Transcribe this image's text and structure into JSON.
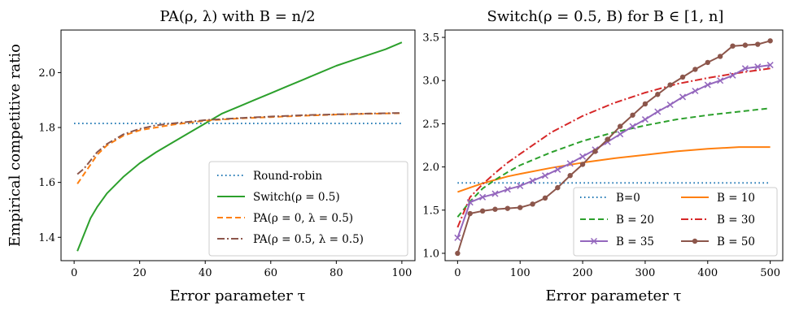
{
  "chart_data": [
    {
      "type": "line",
      "title": "PA(ρ, λ) with B = n/2",
      "xlabel": "Error parameter τ",
      "ylabel": "Empirical competitive ratio",
      "xlim": [
        -4,
        104
      ],
      "ylim": [
        1.315,
        2.155
      ],
      "xticks": [
        0,
        20,
        40,
        60,
        80,
        100
      ],
      "xtick_labels": [
        "0",
        "20",
        "40",
        "60",
        "80",
        "100"
      ],
      "yticks": [
        1.4,
        1.6,
        1.8,
        2.0
      ],
      "ytick_labels": [
        "1.4",
        "1.6",
        "1.8",
        "2.0"
      ],
      "legend_position": "lower-right",
      "grid": false,
      "series": [
        {
          "name": "Round-robin",
          "color": "#1f77b4",
          "style": "dotted",
          "marker": "none",
          "x": [
            0,
            100
          ],
          "y": [
            1.815,
            1.815
          ]
        },
        {
          "name": "Switch(ρ = 0.5)",
          "color": "#2ca02c",
          "style": "solid",
          "marker": "none",
          "x": [
            1,
            3,
            5,
            7,
            10,
            15,
            20,
            25,
            30,
            35,
            40,
            45,
            50,
            55,
            60,
            65,
            70,
            75,
            80,
            85,
            90,
            95,
            100
          ],
          "y": [
            1.35,
            1.41,
            1.47,
            1.51,
            1.56,
            1.62,
            1.67,
            1.71,
            1.745,
            1.78,
            1.815,
            1.85,
            1.875,
            1.9,
            1.925,
            1.95,
            1.975,
            2.0,
            2.025,
            2.045,
            2.065,
            2.085,
            2.11
          ]
        },
        {
          "name": "PA(ρ = 0, λ = 0.5)",
          "color": "#ff7f0e",
          "style": "dashed",
          "marker": "none",
          "x": [
            1,
            3,
            5,
            7,
            10,
            15,
            20,
            25,
            30,
            40,
            50,
            60,
            70,
            80,
            90,
            100
          ],
          "y": [
            1.595,
            1.63,
            1.665,
            1.7,
            1.735,
            1.77,
            1.79,
            1.8,
            1.81,
            1.825,
            1.833,
            1.838,
            1.843,
            1.847,
            1.85,
            1.852
          ]
        },
        {
          "name": "PA(ρ = 0.5, λ = 0.5)",
          "color": "#8c564b",
          "style": "dashdot",
          "marker": "none",
          "x": [
            1,
            3,
            5,
            7,
            10,
            15,
            20,
            25,
            30,
            40,
            50,
            60,
            70,
            80,
            90,
            100
          ],
          "y": [
            1.63,
            1.65,
            1.68,
            1.71,
            1.74,
            1.775,
            1.795,
            1.808,
            1.815,
            1.827,
            1.834,
            1.84,
            1.845,
            1.848,
            1.851,
            1.853
          ]
        }
      ]
    },
    {
      "type": "line",
      "title": "Switch(ρ = 0.5, B) for B ∈ [1, n]",
      "xlabel": "Error parameter τ",
      "ylabel": "",
      "xlim": [
        -20,
        520
      ],
      "ylim": [
        0.915,
        3.585
      ],
      "xticks": [
        0,
        100,
        200,
        300,
        400,
        500
      ],
      "xtick_labels": [
        "0",
        "100",
        "200",
        "300",
        "400",
        "500"
      ],
      "yticks": [
        1.0,
        1.5,
        2.0,
        2.5,
        3.0,
        3.5
      ],
      "ytick_labels": [
        "1.0",
        "1.5",
        "2.0",
        "2.5",
        "3.0",
        "3.5"
      ],
      "legend_position": "lower-right",
      "legend_columns": 2,
      "grid": false,
      "series": [
        {
          "name": "B=0",
          "color": "#1f77b4",
          "style": "dotted",
          "marker": "none",
          "x": [
            0,
            500
          ],
          "y": [
            1.815,
            1.815
          ]
        },
        {
          "name": "B = 10",
          "color": "#ff7f0e",
          "style": "solid",
          "marker": "none",
          "x": [
            0,
            20,
            40,
            60,
            80,
            100,
            150,
            200,
            250,
            300,
            350,
            400,
            450,
            500
          ],
          "y": [
            1.71,
            1.76,
            1.81,
            1.85,
            1.89,
            1.92,
            1.99,
            2.05,
            2.1,
            2.14,
            2.18,
            2.21,
            2.23,
            2.23
          ]
        },
        {
          "name": "B = 20",
          "color": "#2ca02c",
          "style": "dashed",
          "marker": "none",
          "x": [
            0,
            20,
            40,
            60,
            80,
            100,
            150,
            200,
            250,
            300,
            350,
            400,
            450,
            500
          ],
          "y": [
            1.42,
            1.6,
            1.75,
            1.85,
            1.94,
            2.02,
            2.17,
            2.3,
            2.4,
            2.48,
            2.55,
            2.6,
            2.64,
            2.68
          ]
        },
        {
          "name": "B = 30",
          "color": "#d62728",
          "style": "dashdot",
          "marker": "none",
          "x": [
            0,
            20,
            40,
            60,
            80,
            100,
            150,
            200,
            250,
            300,
            350,
            400,
            450,
            500
          ],
          "y": [
            1.3,
            1.65,
            1.8,
            1.93,
            2.05,
            2.15,
            2.4,
            2.59,
            2.74,
            2.86,
            2.96,
            3.03,
            3.09,
            3.14
          ]
        },
        {
          "name": "B = 35",
          "color": "#9467bd",
          "style": "solid",
          "marker": "x",
          "x": [
            0,
            20,
            40,
            60,
            80,
            100,
            120,
            140,
            160,
            180,
            200,
            220,
            240,
            260,
            280,
            300,
            320,
            340,
            360,
            380,
            400,
            420,
            440,
            460,
            480,
            500
          ],
          "y": [
            1.18,
            1.59,
            1.65,
            1.69,
            1.74,
            1.78,
            1.84,
            1.9,
            1.97,
            2.04,
            2.12,
            2.2,
            2.29,
            2.38,
            2.47,
            2.55,
            2.64,
            2.72,
            2.81,
            2.88,
            2.95,
            3.0,
            3.06,
            3.14,
            3.16,
            3.18
          ]
        },
        {
          "name": "B = 50",
          "color": "#8c564b",
          "style": "solid",
          "marker": "o",
          "x": [
            0,
            20,
            40,
            60,
            80,
            100,
            120,
            140,
            160,
            180,
            200,
            220,
            240,
            260,
            280,
            300,
            320,
            340,
            360,
            380,
            400,
            420,
            440,
            460,
            480,
            500
          ],
          "y": [
            1.0,
            1.46,
            1.49,
            1.51,
            1.52,
            1.53,
            1.57,
            1.64,
            1.76,
            1.9,
            2.03,
            2.18,
            2.32,
            2.47,
            2.6,
            2.73,
            2.84,
            2.95,
            3.04,
            3.13,
            3.21,
            3.28,
            3.4,
            3.41,
            3.42,
            3.46
          ]
        }
      ]
    }
  ]
}
